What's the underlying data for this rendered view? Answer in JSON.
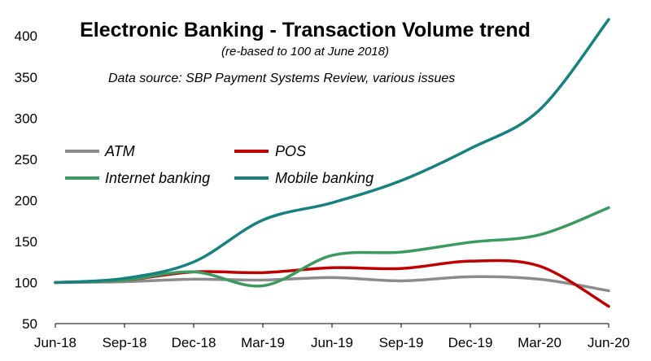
{
  "chart_data": {
    "type": "line",
    "title": "Electronic Banking - Transaction Volume trend",
    "subtitle": "(re-based to 100 at June 2018)",
    "source": "Data source: SBP Payment Systems Review, various issues",
    "xlabel": "",
    "ylabel": "",
    "x": [
      "Jun-18",
      "Sep-18",
      "Dec-18",
      "Mar-19",
      "Jun-19",
      "Sep-19",
      "Dec-19",
      "Mar-20",
      "Jun-20"
    ],
    "ylim": [
      50,
      420
    ],
    "yticks": [
      50,
      100,
      150,
      200,
      250,
      300,
      350,
      400
    ],
    "grid": false,
    "legend_position": "middle-left",
    "series": [
      {
        "name": "ATM",
        "color": "#8c8c8c",
        "values": [
          100,
          101,
          104,
          103,
          106,
          102,
          107,
          104,
          90
        ]
      },
      {
        "name": "POS",
        "color": "#c00000",
        "values": [
          100,
          103,
          113,
          112,
          118,
          117,
          126,
          120,
          71
        ]
      },
      {
        "name": "Internet banking",
        "color": "#3b9a5e",
        "values": [
          100,
          103,
          113,
          96,
          133,
          137,
          149,
          158,
          191
        ]
      },
      {
        "name": "Mobile banking",
        "color": "#17817f",
        "values": [
          100,
          105,
          125,
          176,
          197,
          224,
          263,
          310,
          420
        ]
      }
    ]
  }
}
